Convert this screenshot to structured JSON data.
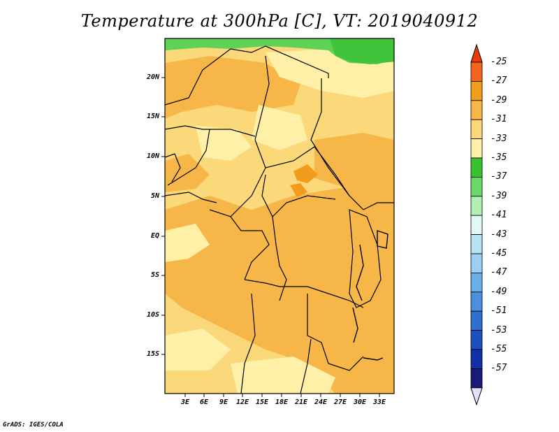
{
  "title": "Temperature at 300hPa [C], VT: 2019040912",
  "credit": "GrADS: IGES/COLA",
  "map": {
    "lat_labels": [
      "20N",
      "15N",
      "10N",
      "5N",
      "EQ",
      "5S",
      "10S",
      "15S"
    ],
    "lon_labels": [
      "3E",
      "6E",
      "9E",
      "12E",
      "15E",
      "18E",
      "21E",
      "24E",
      "27E",
      "30E",
      "33E"
    ],
    "fill_colors": {
      "cold_-33": "#fef0a6",
      "mid_-31": "#fbd97a",
      "warm_-29": "#f7b648",
      "warmer_-27": "#f29c1b",
      "cold_-35": "#41c43c",
      "cold_-37": "#5ed257"
    }
  },
  "colorbar": {
    "labels": [
      "-25",
      "-27",
      "-29",
      "-31",
      "-33",
      "-35",
      "-37",
      "-39",
      "-41",
      "-43",
      "-45",
      "-47",
      "-49",
      "-51",
      "-53",
      "-55",
      "-57"
    ],
    "colors": [
      "#ea3b0a",
      "#f2661d",
      "#f29d1c",
      "#f7b746",
      "#fbd97a",
      "#fef0a6",
      "#39c230",
      "#6ad96a",
      "#b2efb2",
      "#e2f8f6",
      "#b8e3f5",
      "#9ccff0",
      "#6ab0e8",
      "#4a90e0",
      "#2e6fd0",
      "#1c50c0",
      "#0f30a8",
      "#1a1a78",
      "#e2e2f8"
    ]
  }
}
